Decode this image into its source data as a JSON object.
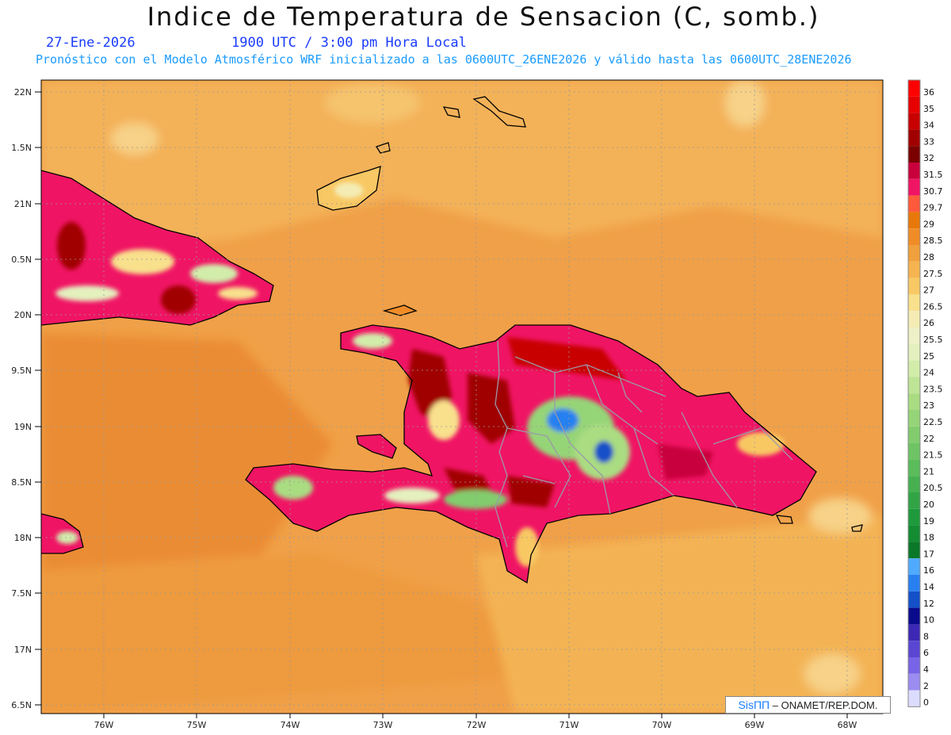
{
  "header": {
    "title": "Indice de Temperatura de Sensacion (C, somb.)",
    "date": "27-Ene-2026",
    "time": "1900 UTC / 3:00 pm Hora Local",
    "info": "Pronóstico con el Modelo Atmosférico WRF inicializado a las 0600UTC_26ENE2026 y válido hasta las 0600UTC_28ENE2026"
  },
  "map": {
    "lat_labels": [
      "22N",
      "1.5N",
      "21N",
      "0.5N",
      "20N",
      "9.5N",
      "19N",
      "8.5N",
      "18N",
      "7.5N",
      "17N",
      "6.5N"
    ],
    "lon_labels": [
      "76W",
      "75W",
      "74W",
      "73W",
      "72W",
      "71W",
      "70W",
      "69W",
      "68W"
    ]
  },
  "legend": {
    "items": [
      {
        "label": "36",
        "color": "#ff0000"
      },
      {
        "label": "35",
        "color": "#e60000"
      },
      {
        "label": "34",
        "color": "#c80000"
      },
      {
        "label": "33",
        "color": "#a00000"
      },
      {
        "label": "32",
        "color": "#7a0000"
      },
      {
        "label": "31.5",
        "color": "#c8003c"
      },
      {
        "label": "30.7",
        "color": "#f01464"
      },
      {
        "label": "29.7",
        "color": "#ff5a3c"
      },
      {
        "label": "29",
        "color": "#e8780a"
      },
      {
        "label": "28.5",
        "color": "#f08c28"
      },
      {
        "label": "28",
        "color": "#f0a03c"
      },
      {
        "label": "27.5",
        "color": "#f5b450"
      },
      {
        "label": "27",
        "color": "#f8c864"
      },
      {
        "label": "26.5",
        "color": "#f8e08c"
      },
      {
        "label": "26",
        "color": "#f4ecb4"
      },
      {
        "label": "25.5",
        "color": "#eef0c8"
      },
      {
        "label": "25",
        "color": "#e4f0be"
      },
      {
        "label": "24",
        "color": "#d2ecaa"
      },
      {
        "label": "23.5",
        "color": "#bee496"
      },
      {
        "label": "23",
        "color": "#aadc82"
      },
      {
        "label": "22.5",
        "color": "#96d478"
      },
      {
        "label": "22",
        "color": "#82cc6e"
      },
      {
        "label": "21.5",
        "color": "#6ec464"
      },
      {
        "label": "21",
        "color": "#5abc5a"
      },
      {
        "label": "20.5",
        "color": "#46b050"
      },
      {
        "label": "20",
        "color": "#32a446"
      },
      {
        "label": "19",
        "color": "#1e9a3c"
      },
      {
        "label": "18",
        "color": "#148c32"
      },
      {
        "label": "17",
        "color": "#0a7828"
      },
      {
        "label": "16",
        "color": "#50aaff"
      },
      {
        "label": "14",
        "color": "#2880f0"
      },
      {
        "label": "12",
        "color": "#1450c8"
      },
      {
        "label": "10",
        "color": "#0a0a8c"
      },
      {
        "label": "8",
        "color": "#3c28b4"
      },
      {
        "label": "6",
        "color": "#5a46d2"
      },
      {
        "label": "4",
        "color": "#7864e6"
      },
      {
        "label": "2",
        "color": "#9b8cf0"
      },
      {
        "label": "0",
        "color": "#dcdcff"
      }
    ]
  },
  "credit": {
    "brand": "SisПП",
    "text": "ONAMET/REP.DOM."
  }
}
